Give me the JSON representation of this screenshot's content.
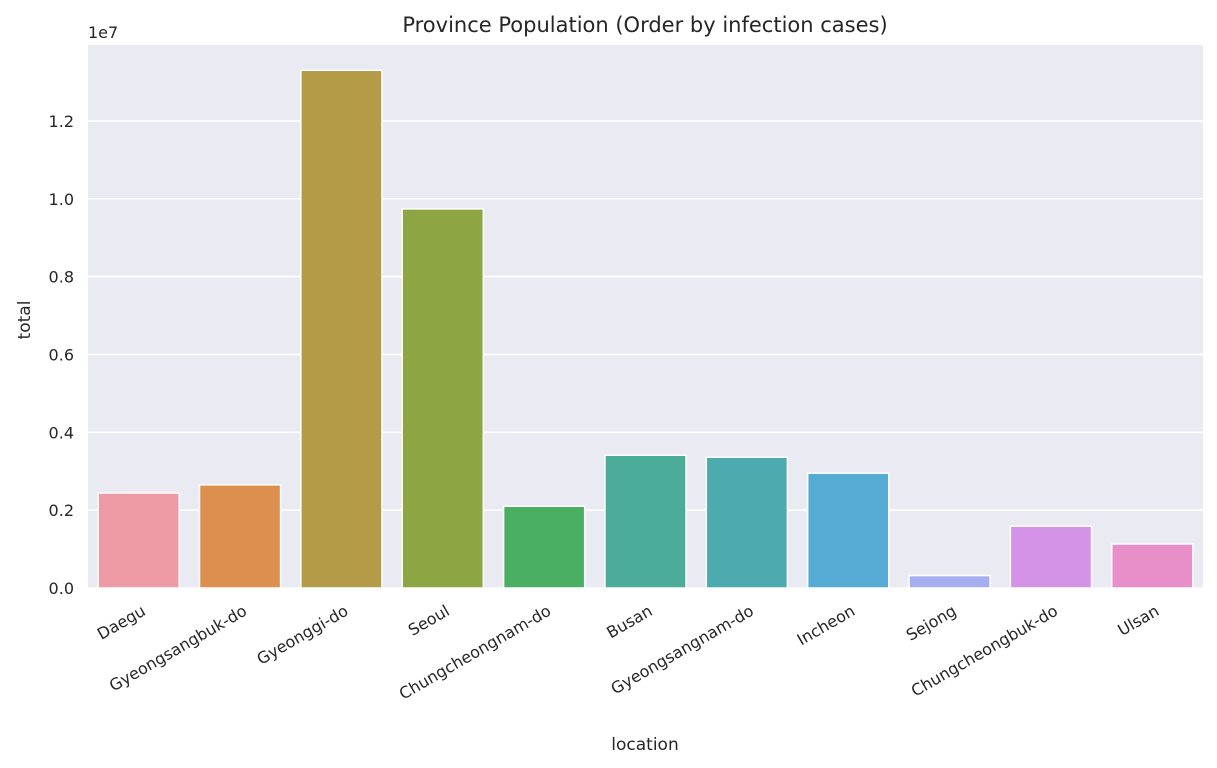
{
  "chart_data": {
    "type": "bar",
    "title": "Province Population (Order by infection cases)",
    "xlabel": "location",
    "ylabel": "total",
    "y_scale_label": "1e7",
    "categories": [
      "Daegu",
      "Gyeongsangbuk-do",
      "Gyeonggi-do",
      "Seoul",
      "Chungcheongnam-do",
      "Busan",
      "Gyeongsangnam-do",
      "Incheon",
      "Sejong",
      "Chungcheongbuk-do",
      "Ulsan"
    ],
    "values": [
      2440000,
      2650000,
      13300000,
      9740000,
      2100000,
      3410000,
      3360000,
      2950000,
      320000,
      1590000,
      1130000
    ],
    "colors": [
      "#ee9aa5",
      "#dc8f4e",
      "#b39b47",
      "#8ea544",
      "#4aaf62",
      "#4bac99",
      "#4daaaf",
      "#55abd4",
      "#a7aeef",
      "#d493e6",
      "#e88ec8"
    ],
    "ylim": [
      0,
      13950000
    ],
    "yticks": [
      0,
      2000000,
      4000000,
      6000000,
      8000000,
      10000000,
      12000000
    ],
    "ytick_labels": [
      "0.0",
      "0.2",
      "0.4",
      "0.6",
      "0.8",
      "1.0",
      "1.2"
    ],
    "grid": true,
    "background": "#eaeaf2",
    "legend": "none"
  }
}
